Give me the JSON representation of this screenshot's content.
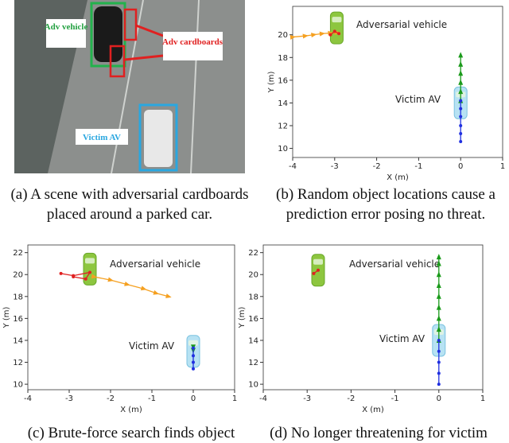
{
  "panels": [
    {
      "caption": "(a) A scene with adversarial cardboards placed around a parked car.",
      "image_labels": [
        "Adv vehicle",
        "Adv cardboards",
        "Victim AV"
      ]
    },
    {
      "caption": "(b) Random object locations cause a prediction error posing no threat.",
      "chart": {
        "type": "line",
        "xlabel": "X (m)",
        "ylabel": "Y (m)",
        "xlim": [
          -4,
          1
        ],
        "ylim": [
          9.2,
          22.5
        ],
        "xticks": [
          -4,
          -3,
          -2,
          -1,
          0,
          1
        ],
        "yticks": [
          10,
          12,
          14,
          16,
          18,
          20
        ],
        "annotations": [
          "Adversarial vehicle",
          "Victim AV"
        ],
        "series": [
          {
            "color": "#f5a020",
            "marker": "arrow",
            "x": [
              -4,
              -3.7,
              -3.5,
              -3.3,
              -3.1,
              -2.95
            ],
            "values": [
              19.8,
              19.9,
              20.0,
              20.1,
              20.15,
              20.2
            ]
          },
          {
            "color": "#e02020",
            "marker": "dot",
            "x": [
              -3.1,
              -3.0,
              -2.9
            ],
            "values": [
              20.0,
              20.3,
              20.1
            ]
          },
          {
            "color": "#1a9a1a",
            "marker": "arrow",
            "x": [
              0,
              0,
              0,
              0,
              0,
              0
            ],
            "values": [
              14.2,
              15,
              15.8,
              16.6,
              17.4,
              18.2
            ]
          },
          {
            "color": "#2030e0",
            "marker": "dot",
            "x": [
              0,
              0,
              0,
              0,
              0,
              0
            ],
            "values": [
              14.2,
              13.5,
              12.8,
              12,
              11.3,
              10.6
            ]
          }
        ]
      }
    },
    {
      "caption": "(c) Brute-force search finds object",
      "chart": {
        "type": "line",
        "xlabel": "X (m)",
        "ylabel": "Y (m)",
        "xlim": [
          -4,
          1
        ],
        "ylim": [
          9.5,
          22.7
        ],
        "xticks": [
          -4,
          -3,
          -2,
          -1,
          0,
          1
        ],
        "yticks": [
          10,
          12,
          14,
          16,
          18,
          20,
          22
        ],
        "annotations": [
          "Adversarial vehicle",
          "Victim AV"
        ],
        "series": [
          {
            "color": "#f5a020",
            "marker": "arrow",
            "x": [
              -2.4,
              -2.0,
              -1.6,
              -1.2,
              -0.9,
              -0.6
            ],
            "values": [
              19.8,
              19.5,
              19.1,
              18.7,
              18.3,
              18.0
            ]
          },
          {
            "color": "#e02020",
            "marker": "dot",
            "x": [
              -3.2,
              -2.9,
              -2.5,
              -2.6,
              -2.9
            ],
            "values": [
              20.1,
              19.9,
              20.2,
              19.6,
              19.8
            ]
          },
          {
            "color": "#1a9a1a",
            "marker": "arrow",
            "x": [
              0,
              0
            ],
            "values": [
              13.4,
              13.1
            ]
          },
          {
            "color": "#2030e0",
            "marker": "dot",
            "x": [
              0,
              0,
              0,
              0
            ],
            "values": [
              13.3,
              12.6,
              12,
              11.4
            ]
          }
        ]
      }
    },
    {
      "caption": "(d) No longer threatening for victim",
      "chart": {
        "type": "line",
        "xlabel": "X (m)",
        "ylabel": "Y (m)",
        "xlim": [
          -4,
          1
        ],
        "ylim": [
          9.5,
          22.7
        ],
        "xticks": [
          -4,
          -3,
          -2,
          -1,
          0,
          1
        ],
        "yticks": [
          10,
          12,
          14,
          16,
          18,
          20,
          22
        ],
        "annotations": [
          "Adversarial vehicle",
          "Victim AV"
        ],
        "series": [
          {
            "color": "#e02020",
            "marker": "dot",
            "x": [
              -2.85,
              -2.75
            ],
            "values": [
              20.1,
              20.4
            ]
          },
          {
            "color": "#1a9a1a",
            "marker": "arrow",
            "x": [
              0,
              0,
              0,
              0,
              0,
              0,
              0,
              0,
              0
            ],
            "values": [
              14,
              15,
              16,
              17,
              18,
              19,
              20,
              21,
              21.6
            ]
          },
          {
            "color": "#2030e0",
            "marker": "dot",
            "x": [
              0,
              0,
              0,
              0,
              0
            ],
            "values": [
              14,
              13,
              12,
              11,
              10
            ]
          }
        ]
      }
    }
  ]
}
